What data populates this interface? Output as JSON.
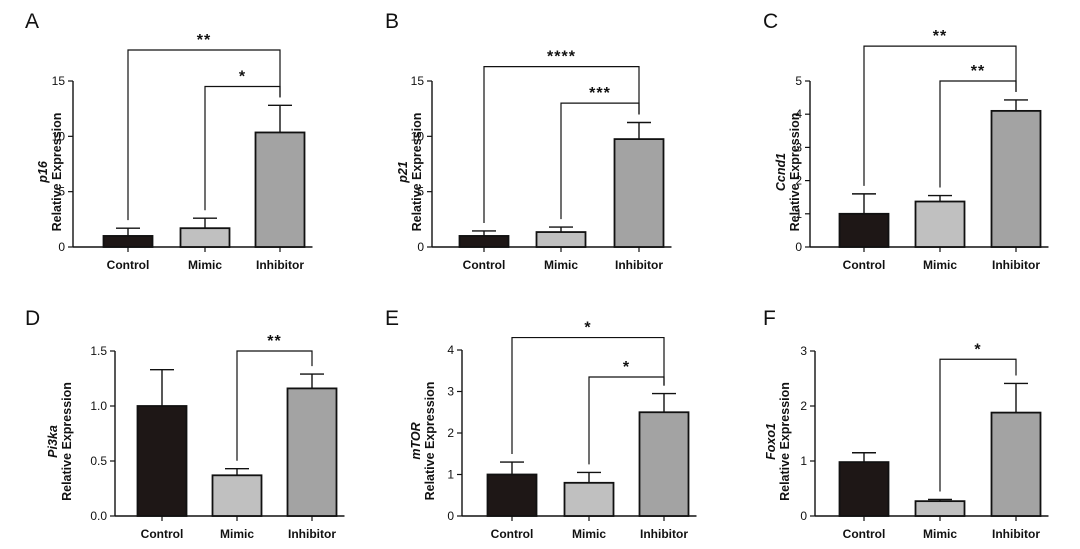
{
  "chart_data": [
    {
      "type": "bar",
      "panel": "A",
      "gene": "p16",
      "ylabel": "Relative Expression",
      "categories": [
        "Control",
        "Mimic",
        "Inhibitor"
      ],
      "values": [
        1.0,
        1.7,
        10.35
      ],
      "errors": [
        0.7,
        0.9,
        2.45
      ],
      "ylim": [
        0,
        15
      ],
      "yticks": [
        0,
        5,
        10,
        15
      ],
      "ytick_labels": [
        "0",
        "5",
        "10",
        "15"
      ],
      "colors": [
        "#1e1716",
        "#c0c0c0",
        "#a3a3a3"
      ],
      "significance": [
        {
          "from": 1,
          "to": 2,
          "label": "*",
          "y": 14.5
        },
        {
          "from": 0,
          "to": 2,
          "label": "**",
          "y": 17.8
        }
      ]
    },
    {
      "type": "bar",
      "panel": "B",
      "gene": "p21",
      "ylabel": "Relative Expression",
      "categories": [
        "Control",
        "Mimic",
        "Inhibitor"
      ],
      "values": [
        1.0,
        1.35,
        9.75
      ],
      "errors": [
        0.45,
        0.45,
        1.5
      ],
      "ylim": [
        0,
        15
      ],
      "yticks": [
        0,
        5,
        10,
        15
      ],
      "ytick_labels": [
        "0",
        "5",
        "10",
        "15"
      ],
      "colors": [
        "#1e1716",
        "#c0c0c0",
        "#a3a3a3"
      ],
      "significance": [
        {
          "from": 1,
          "to": 2,
          "label": "***",
          "y": 13.0
        },
        {
          "from": 0,
          "to": 2,
          "label": "****",
          "y": 16.3
        }
      ]
    },
    {
      "type": "bar",
      "panel": "C",
      "gene": "Ccnd1",
      "ylabel": "Relative Expression",
      "categories": [
        "Control",
        "Mimic",
        "Inhibitor"
      ],
      "values": [
        1.0,
        1.37,
        4.1
      ],
      "errors": [
        0.6,
        0.18,
        0.33
      ],
      "ylim": [
        0,
        5
      ],
      "yticks": [
        0,
        1,
        2,
        3,
        4,
        5
      ],
      "ytick_labels": [
        "0",
        "1",
        "2",
        "3",
        "4",
        "5"
      ],
      "colors": [
        "#1e1716",
        "#c0c0c0",
        "#a3a3a3"
      ],
      "significance": [
        {
          "from": 1,
          "to": 2,
          "label": "**",
          "y": 5.0
        },
        {
          "from": 0,
          "to": 2,
          "label": "**",
          "y": 6.05
        }
      ]
    },
    {
      "type": "bar",
      "panel": "D",
      "gene": "Pi3ka",
      "ylabel": "Relative Expression",
      "categories": [
        "Control",
        "Mimic",
        "Inhibitor"
      ],
      "values": [
        1.0,
        0.37,
        1.16
      ],
      "errors": [
        0.33,
        0.06,
        0.13
      ],
      "ylim": [
        0,
        1.5
      ],
      "yticks": [
        0,
        0.5,
        1.0,
        1.5
      ],
      "ytick_labels": [
        "0.0",
        "0.5",
        "1.0",
        "1.5"
      ],
      "colors": [
        "#1e1716",
        "#c0c0c0",
        "#a3a3a3"
      ],
      "significance": [
        {
          "from": 1,
          "to": 2,
          "label": "**",
          "y": 1.5
        }
      ]
    },
    {
      "type": "bar",
      "panel": "E",
      "gene": "mTOR",
      "ylabel": "Relative Expression",
      "categories": [
        "Control",
        "Mimic",
        "Inhibitor"
      ],
      "values": [
        1.0,
        0.8,
        2.5
      ],
      "errors": [
        0.3,
        0.25,
        0.45
      ],
      "ylim": [
        0,
        4
      ],
      "yticks": [
        0,
        1,
        2,
        3,
        4
      ],
      "ytick_labels": [
        "0",
        "1",
        "2",
        "3",
        "4"
      ],
      "colors": [
        "#1e1716",
        "#c0c0c0",
        "#a3a3a3"
      ],
      "significance": [
        {
          "from": 1,
          "to": 2,
          "label": "*",
          "y": 3.35
        },
        {
          "from": 0,
          "to": 2,
          "label": "*",
          "y": 4.3
        }
      ]
    },
    {
      "type": "bar",
      "panel": "F",
      "gene": "Foxo1",
      "ylabel": "Relative Expression",
      "categories": [
        "Control",
        "Mimic",
        "Inhibitor"
      ],
      "values": [
        0.98,
        0.27,
        1.88
      ],
      "errors": [
        0.17,
        0.03,
        0.53
      ],
      "ylim": [
        0,
        3
      ],
      "yticks": [
        0,
        1,
        2,
        3
      ],
      "ytick_labels": [
        "0",
        "1",
        "2",
        "3"
      ],
      "colors": [
        "#1e1716",
        "#c0c0c0",
        "#a3a3a3"
      ],
      "significance": [
        {
          "from": 1,
          "to": 2,
          "label": "*",
          "y": 2.85
        }
      ]
    }
  ]
}
